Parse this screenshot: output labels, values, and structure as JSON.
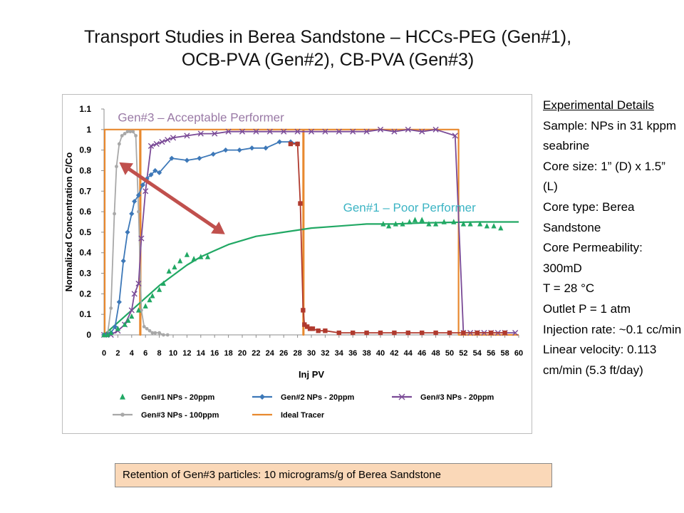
{
  "slide": {
    "title_line1": "Transport Studies in Berea Sandstone – HCCs-PEG (Gen#1),",
    "title_line2": "OCB-PVA (Gen#2), CB-PVA (Gen#3)"
  },
  "details": {
    "heading": "Experimental Details",
    "lines": [
      "Sample:  NPs in 31 kppm seabrine",
      "Core size: 1” (D) x 1.5” (L)",
      "Core type: Berea Sandstone",
      "Core Permeability: 300mD",
      "T = 28 °C",
      "Outlet P = 1 atm",
      "Injection rate: ~0.1 cc/min",
      "Linear velocity: 0.113 cm/min (5.3 ft/day)"
    ]
  },
  "retention_note": "Retention of Gen#3 particles:  10 micrograms/g of Berea Sandstone",
  "chart_data": {
    "type": "scatter",
    "title": "",
    "xlabel": "Inj PV",
    "ylabel": "Normalized Concentration C/Co",
    "xlim": [
      0,
      60
    ],
    "ylim": [
      0,
      1.1
    ],
    "xticks": [
      "0",
      "2",
      "4",
      "6",
      "8",
      "10",
      "12",
      "14",
      "16",
      "18",
      "20",
      "22",
      "24",
      "26",
      "28",
      "30",
      "32",
      "34",
      "36",
      "38",
      "40",
      "42",
      "44",
      "46",
      "48",
      "50",
      "52",
      "54",
      "56",
      "58",
      "60"
    ],
    "yticks": [
      "0",
      "0.1",
      "0.2",
      "0.3",
      "0.4",
      "0.5",
      "0.6",
      "0.7",
      "0.8",
      "0.9",
      "1",
      "1.1"
    ],
    "grid": false,
    "legend_position": "bottom",
    "annotations": [
      {
        "text": "Gen#3 – Acceptable Performer",
        "color": "#9a7aa6",
        "x": 2,
        "y": 1.04
      },
      {
        "text": "Gen#1 – Poor Performer",
        "color": "#3cb4c4",
        "x": 34.6,
        "y": 0.6
      }
    ],
    "arrow": {
      "color": "#c0504d",
      "from": [
        2.2,
        0.84
      ],
      "to": [
        17.5,
        0.49
      ]
    },
    "series": [
      {
        "name": "Gen#1 NPs - 20ppm",
        "color": "#21a864",
        "marker": "triangle",
        "line": false,
        "points": [
          [
            0,
            0
          ],
          [
            0.5,
            0
          ],
          [
            1,
            0.01
          ],
          [
            2,
            0.03
          ],
          [
            3,
            0.05
          ],
          [
            3.5,
            0.07
          ],
          [
            4,
            0.09
          ],
          [
            5,
            0.12
          ],
          [
            6,
            0.14
          ],
          [
            6.6,
            0.17
          ],
          [
            7,
            0.19
          ],
          [
            8,
            0.22
          ],
          [
            8.6,
            0.25
          ],
          [
            9.4,
            0.31
          ],
          [
            10.2,
            0.33
          ],
          [
            11,
            0.36
          ],
          [
            12,
            0.39
          ],
          [
            13,
            0.37
          ],
          [
            14,
            0.38
          ],
          [
            15,
            0.38
          ],
          [
            40.4,
            0.54
          ],
          [
            41.2,
            0.53
          ],
          [
            42.2,
            0.54
          ],
          [
            43.2,
            0.54
          ],
          [
            44.2,
            0.55
          ],
          [
            45,
            0.56
          ],
          [
            46,
            0.56
          ],
          [
            47,
            0.54
          ],
          [
            48,
            0.54
          ],
          [
            49.2,
            0.55
          ],
          [
            50.6,
            0.55
          ],
          [
            52,
            0.54
          ],
          [
            53,
            0.54
          ],
          [
            54.4,
            0.54
          ],
          [
            55.4,
            0.53
          ],
          [
            56.4,
            0.53
          ],
          [
            57.4,
            0.52
          ]
        ]
      },
      {
        "name": "Gen#1 NPs - 20ppm (fit)",
        "color": "#21a864",
        "marker": "none",
        "line": true,
        "legend": false,
        "points": [
          [
            0,
            0
          ],
          [
            2,
            0.06
          ],
          [
            4,
            0.12
          ],
          [
            6,
            0.18
          ],
          [
            8,
            0.24
          ],
          [
            10,
            0.29
          ],
          [
            12,
            0.34
          ],
          [
            14,
            0.38
          ],
          [
            16,
            0.41
          ],
          [
            18,
            0.44
          ],
          [
            20,
            0.46
          ],
          [
            22,
            0.48
          ],
          [
            24,
            0.49
          ],
          [
            26,
            0.5
          ],
          [
            28,
            0.51
          ],
          [
            30,
            0.52
          ],
          [
            34,
            0.53
          ],
          [
            38,
            0.54
          ],
          [
            42,
            0.54
          ],
          [
            46,
            0.545
          ],
          [
            50,
            0.548
          ],
          [
            54,
            0.55
          ],
          [
            60,
            0.55
          ]
        ]
      },
      {
        "name": "Gen#2 NPs - 20ppm",
        "color": "#3d78b8",
        "marker": "diamond",
        "line": true,
        "points": [
          [
            0,
            0
          ],
          [
            1,
            0.01
          ],
          [
            1.6,
            0.04
          ],
          [
            2.2,
            0.16
          ],
          [
            2.8,
            0.36
          ],
          [
            3.4,
            0.5
          ],
          [
            4,
            0.59
          ],
          [
            4.4,
            0.65
          ],
          [
            5,
            0.68
          ],
          [
            5.6,
            0.73
          ],
          [
            6.2,
            0.76
          ],
          [
            6.8,
            0.78
          ],
          [
            7.4,
            0.8
          ],
          [
            8,
            0.79
          ],
          [
            9.8,
            0.86
          ],
          [
            12,
            0.85
          ],
          [
            13.8,
            0.86
          ],
          [
            15.8,
            0.88
          ],
          [
            17.6,
            0.9
          ],
          [
            19.6,
            0.9
          ],
          [
            21.4,
            0.91
          ],
          [
            23.4,
            0.91
          ],
          [
            25.4,
            0.94
          ],
          [
            27,
            0.94
          ],
          [
            28,
            0.93
          ]
        ]
      },
      {
        "name": "Gen#3 NPs - 20ppm",
        "color": "#7a4a96",
        "marker": "x",
        "line": true,
        "points": [
          [
            0,
            0
          ],
          [
            1,
            0
          ],
          [
            2,
            0.02
          ],
          [
            3,
            0.05
          ],
          [
            4,
            0.12
          ],
          [
            4.4,
            0.2
          ],
          [
            5,
            0.25
          ],
          [
            5.4,
            0.47
          ],
          [
            6,
            0.7
          ],
          [
            6.8,
            0.92
          ],
          [
            7.6,
            0.93
          ],
          [
            8.4,
            0.94
          ],
          [
            9.2,
            0.95
          ],
          [
            10,
            0.96
          ],
          [
            12,
            0.97
          ],
          [
            14,
            0.98
          ],
          [
            16,
            0.98
          ],
          [
            18,
            0.99
          ],
          [
            20,
            0.99
          ],
          [
            22,
            0.99
          ],
          [
            24,
            0.99
          ],
          [
            26,
            0.99
          ],
          [
            28,
            0.99
          ],
          [
            30,
            0.99
          ],
          [
            32,
            0.99
          ],
          [
            34,
            0.99
          ],
          [
            36,
            0.99
          ],
          [
            38,
            0.99
          ],
          [
            40,
            1.0
          ],
          [
            42,
            0.99
          ],
          [
            44,
            1.0
          ],
          [
            46,
            0.99
          ],
          [
            48,
            1.0
          ],
          [
            50.8,
            0.97
          ],
          [
            52,
            0.01
          ],
          [
            53,
            0.01
          ],
          [
            54,
            0.01
          ],
          [
            55,
            0.01
          ],
          [
            56,
            0.01
          ],
          [
            57,
            0.01
          ],
          [
            58,
            0.01
          ],
          [
            59.5,
            0.01
          ]
        ]
      },
      {
        "name": "Gen#3 NPs - 100ppm",
        "color": "#a8a8a8",
        "marker": "circle",
        "line": true,
        "points": [
          [
            0,
            0
          ],
          [
            0.5,
            0
          ],
          [
            1,
            0.13
          ],
          [
            1.5,
            0.59
          ],
          [
            1.8,
            0.82
          ],
          [
            2.2,
            0.93
          ],
          [
            2.6,
            0.97
          ],
          [
            3,
            0.98
          ],
          [
            3.4,
            0.99
          ],
          [
            3.8,
            0.99
          ],
          [
            4.2,
            0.99
          ],
          [
            4.6,
            0.97
          ],
          [
            5,
            0.6
          ],
          [
            5.4,
            0.12
          ],
          [
            5.8,
            0.04
          ],
          [
            6.2,
            0.03
          ],
          [
            6.6,
            0.02
          ],
          [
            7,
            0.01
          ],
          [
            7.4,
            0.01
          ],
          [
            8,
            0.01
          ],
          [
            8.6,
            0.0
          ],
          [
            9.2,
            0.0
          ]
        ]
      },
      {
        "name": "Gen#2 NPs - 20ppm (post-flush)",
        "color": "#b03a2e",
        "marker": "square",
        "line": true,
        "legend": false,
        "points": [
          [
            27,
            0.93
          ],
          [
            28,
            0.93
          ],
          [
            28.4,
            0.64
          ],
          [
            28.8,
            0.12
          ],
          [
            29,
            0.05
          ],
          [
            29.4,
            0.04
          ],
          [
            29.8,
            0.03
          ],
          [
            30.2,
            0.03
          ],
          [
            31,
            0.02
          ],
          [
            32,
            0.02
          ],
          [
            34,
            0.01
          ],
          [
            36,
            0.01
          ],
          [
            38,
            0.01
          ],
          [
            40,
            0.01
          ],
          [
            42,
            0.01
          ],
          [
            44,
            0.01
          ],
          [
            46,
            0.01
          ],
          [
            48,
            0.01
          ],
          [
            50,
            0.01
          ],
          [
            52,
            0.01
          ],
          [
            54,
            0.01
          ],
          [
            56,
            0.01
          ],
          [
            58,
            0.01
          ]
        ]
      },
      {
        "name": "Ideal Tracer",
        "color": "#e8892f",
        "marker": "none",
        "line": true,
        "points": [
          [
            0,
            0
          ],
          [
            0.1,
            0
          ],
          [
            0.1,
            1.0
          ],
          [
            5.2,
            1.0
          ],
          [
            5.2,
            0
          ],
          [
            5.3,
            0
          ],
          [
            5.3,
            1.0
          ],
          [
            28.8,
            1.0
          ],
          [
            28.8,
            0
          ],
          [
            28.9,
            0
          ],
          [
            28.9,
            1.0
          ],
          [
            51.3,
            1.0
          ],
          [
            51.3,
            0
          ],
          [
            60,
            0
          ]
        ]
      }
    ],
    "legend_entries": [
      {
        "label": "Gen#1 NPs - 20ppm",
        "color": "#21a864",
        "marker": "triangle",
        "line": false
      },
      {
        "label": "Gen#2 NPs - 20ppm",
        "color": "#3d78b8",
        "marker": "diamond",
        "line": true
      },
      {
        "label": "Gen#3 NPs - 20ppm",
        "color": "#7a4a96",
        "marker": "x",
        "line": true
      },
      {
        "label": "Gen#3 NPs - 100ppm",
        "color": "#a8a8a8",
        "marker": "circle",
        "line": true
      },
      {
        "label": "Ideal Tracer",
        "color": "#e8892f",
        "marker": "none",
        "line": true
      }
    ]
  }
}
